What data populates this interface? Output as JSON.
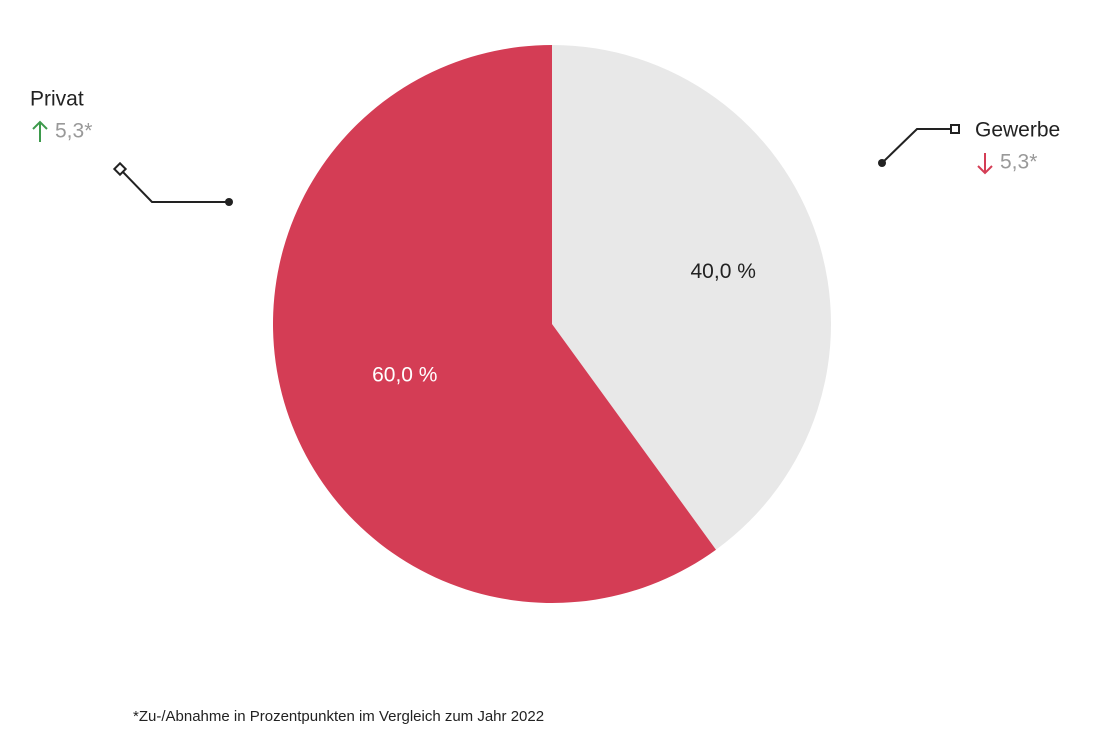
{
  "chart_data": {
    "type": "pie",
    "categories": [
      "Gewerbe",
      "Privat"
    ],
    "values": [
      40,
      60
    ],
    "value_labels": [
      "40,0 %",
      "60,0 %"
    ],
    "colors": [
      "#e8e8e8",
      "#d43d55"
    ],
    "value_label_colors": [
      "#222222",
      "#ffffff"
    ],
    "change_values": [
      5.3,
      5.3
    ],
    "change_labels": [
      "5,3*",
      "5,3*"
    ],
    "change_directions": [
      "down",
      "up"
    ],
    "change_colors": [
      "#d43d55",
      "#3d9a4c"
    ],
    "footnote": "*Zu-/Abnahme in Prozentpunkten im Vergleich zum Jahr 2022"
  }
}
